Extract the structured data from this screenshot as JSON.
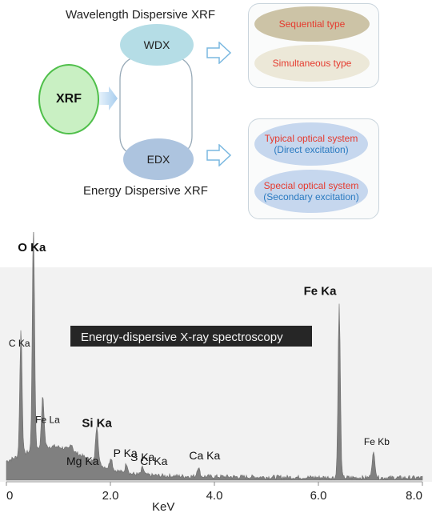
{
  "diagram": {
    "wdx_title": "Wavelength Dispersive XRF",
    "edx_title": "Energy Dispersive XRF",
    "xrf": "XRF",
    "wdx": "WDX",
    "edx": "EDX",
    "wdx_types": [
      "Sequential type",
      "Simultaneous type"
    ],
    "edx_types": [
      {
        "line1": "Typical optical system",
        "line2": "(Direct excitation)"
      },
      {
        "line1": "Special optical system",
        "line2": "(Secondary excitation)"
      }
    ],
    "colors": {
      "xrf_fill": "#c9f0c3",
      "xrf_border": "#4fbf4a",
      "wdx_fill": "#b5dde6",
      "edx_fill": "#adc4df",
      "sequential_fill": "#ccc3a6",
      "simultaneous_fill": "#ece8d8",
      "edx_type_fill": "#c6d7ee",
      "red_text": "#e53a2e",
      "blue_text": "#2a7ac0",
      "arrow": "#7ab8e0"
    }
  },
  "chart_data": {
    "type": "area",
    "title": "Energy-dispersive X-ray spectroscopy",
    "xlabel": "KeV",
    "ylabel": "",
    "xlim": [
      0,
      8
    ],
    "xticks": [
      "0",
      "2.0",
      "4.0",
      "6.0",
      "8.0"
    ],
    "grid": false,
    "fill_color": "#808080",
    "peaks": [
      {
        "label": "C Ka",
        "x": 0.28,
        "height": 0.52,
        "bold": false
      },
      {
        "label": "O Ka",
        "x": 0.52,
        "height": 0.93,
        "bold": true
      },
      {
        "label": "Fe La",
        "x": 0.7,
        "height": 0.21,
        "bold": false
      },
      {
        "label": "Mg Ka",
        "x": 1.25,
        "height": 0.03,
        "bold": false
      },
      {
        "label": "Si Ka",
        "x": 1.74,
        "height": 0.16,
        "bold": true
      },
      {
        "label": "P Ka",
        "x": 2.01,
        "height": 0.05,
        "bold": false
      },
      {
        "label": "S Ka",
        "x": 2.31,
        "height": 0.04,
        "bold": false
      },
      {
        "label": "Cl Ka",
        "x": 2.62,
        "height": 0.03,
        "bold": false
      },
      {
        "label": "Ca Ka",
        "x": 3.69,
        "height": 0.04,
        "bold": false
      },
      {
        "label": "Fe Ka",
        "x": 6.4,
        "height": 0.72,
        "bold": true
      },
      {
        "label": "Fe Kb",
        "x": 7.06,
        "height": 0.1,
        "bold": false
      }
    ]
  }
}
